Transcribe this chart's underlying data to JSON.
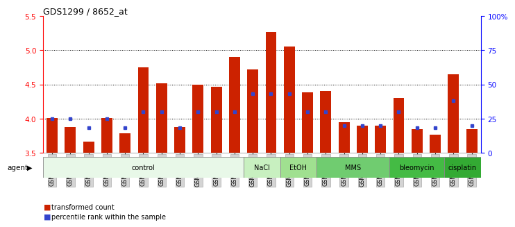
{
  "title": "GDS1299 / 8652_at",
  "samples": [
    "GSM40714",
    "GSM40715",
    "GSM40716",
    "GSM40717",
    "GSM40718",
    "GSM40719",
    "GSM40720",
    "GSM40721",
    "GSM40722",
    "GSM40723",
    "GSM40724",
    "GSM40725",
    "GSM40726",
    "GSM40727",
    "GSM40731",
    "GSM40732",
    "GSM40728",
    "GSM40729",
    "GSM40730",
    "GSM40733",
    "GSM40734",
    "GSM40735",
    "GSM40736",
    "GSM40737"
  ],
  "bar_values": [
    4.01,
    3.88,
    3.66,
    4.01,
    3.78,
    4.75,
    4.52,
    3.88,
    4.5,
    4.47,
    4.9,
    4.72,
    5.27,
    5.05,
    4.38,
    4.4,
    3.95,
    3.9,
    3.9,
    4.3,
    3.84,
    3.76,
    4.65,
    3.84
  ],
  "percentile_values": [
    25,
    25,
    18,
    25,
    18,
    30,
    30,
    18,
    30,
    30,
    30,
    43,
    43,
    43,
    30,
    30,
    20,
    20,
    20,
    30,
    18,
    18,
    38,
    20
  ],
  "ymin": 3.5,
  "ymax": 5.5,
  "yticks_left": [
    3.5,
    4.0,
    4.5,
    5.0,
    5.5
  ],
  "yticks_right_vals": [
    0,
    25,
    50,
    75,
    100
  ],
  "yticks_right_labels": [
    "0",
    "25",
    "50",
    "75",
    "100%"
  ],
  "bar_color": "#cc2200",
  "dot_color": "#3344cc",
  "grid_vals": [
    4.0,
    4.5,
    5.0
  ],
  "agent_groups": [
    {
      "label": "control",
      "start": 0,
      "end": 10,
      "color": "#e8f8e8"
    },
    {
      "label": "NaCl",
      "start": 11,
      "end": 12,
      "color": "#c8f0c0"
    },
    {
      "label": "EtOH",
      "start": 13,
      "end": 14,
      "color": "#a0e090"
    },
    {
      "label": "MMS",
      "start": 15,
      "end": 18,
      "color": "#70cc70"
    },
    {
      "label": "bleomycin",
      "start": 19,
      "end": 21,
      "color": "#44bb44"
    },
    {
      "label": "cisplatin",
      "start": 22,
      "end": 23,
      "color": "#33aa33"
    }
  ],
  "legend": [
    {
      "label": "transformed count",
      "color": "#cc2200"
    },
    {
      "label": "percentile rank within the sample",
      "color": "#3344cc"
    }
  ]
}
